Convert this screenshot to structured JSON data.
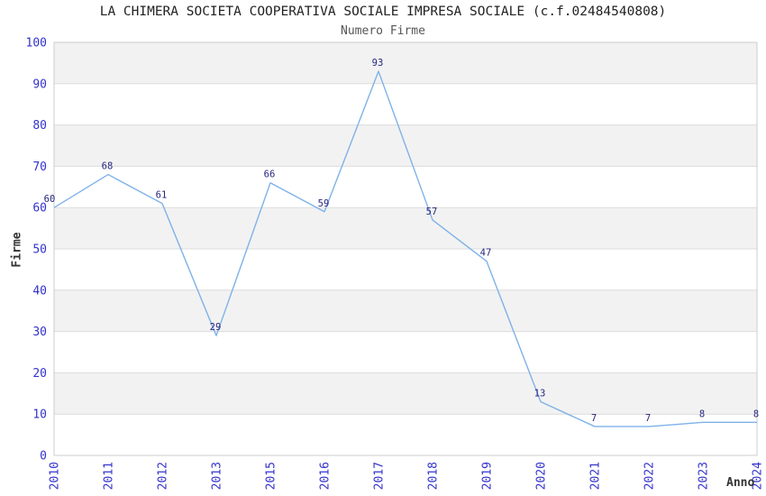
{
  "chart_data": {
    "type": "line",
    "title": "LA CHIMERA SOCIETA COOPERATIVA SOCIALE IMPRESA SOCIALE (c.f.02484540808)",
    "subtitle": "Numero Firme",
    "xlabel": "Anno",
    "ylabel": "Firme",
    "categories": [
      "2010",
      "2011",
      "2012",
      "2013",
      "2015",
      "2016",
      "2017",
      "2018",
      "2019",
      "2020",
      "2021",
      "2022",
      "2023",
      "2024"
    ],
    "values": [
      60,
      68,
      61,
      29,
      66,
      59,
      93,
      57,
      47,
      13,
      7,
      7,
      8,
      8
    ],
    "ylim": [
      0,
      100
    ],
    "ytick_step": 10,
    "yticks": [
      0,
      10,
      20,
      30,
      40,
      50,
      60,
      70,
      80,
      90,
      100
    ],
    "grid": "horizontal gridlines with alternating shaded bands",
    "legend_position": "none",
    "markers": "none, value labels above each point",
    "colors": {
      "line": "#7fb2e8",
      "point_label": "#26267f",
      "tick_label": "#3333cc",
      "band_shaded": "#f2f2f2",
      "band_plain": "#ffffff",
      "gridline": "#dcdcdc",
      "plot_border": "#cccccc",
      "title": "#222222",
      "subtitle": "#555555",
      "axis_title": "#333333"
    }
  }
}
